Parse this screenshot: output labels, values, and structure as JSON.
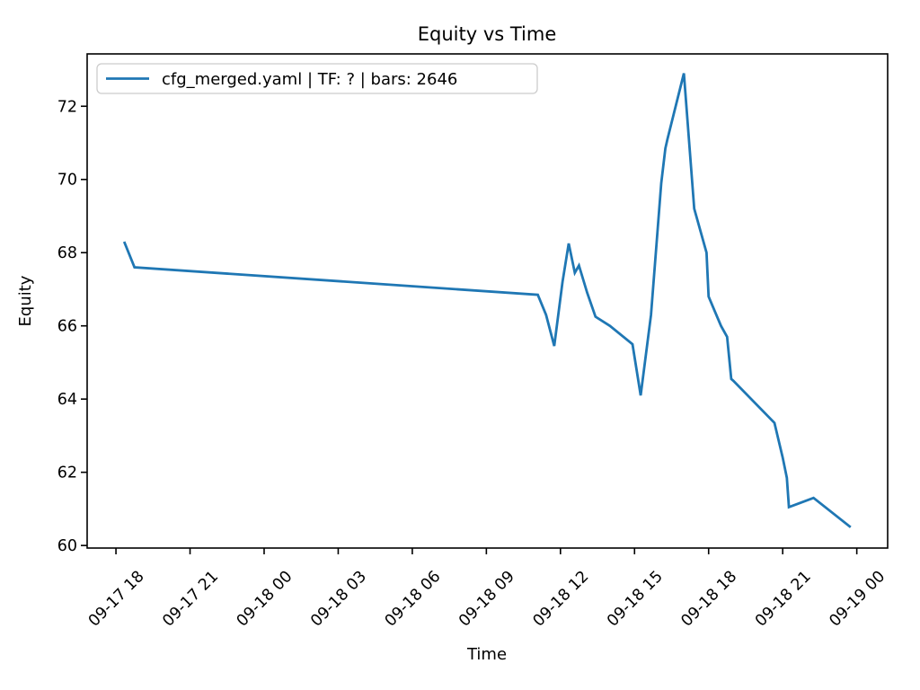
{
  "figure": {
    "background": "#ffffff"
  },
  "legend": {
    "label": "cfg_merged.yaml | TF: ? | bars: 2646",
    "position": "upper left",
    "border_color": "#cccccc",
    "background": "rgba(255,255,255,0.8)"
  },
  "chart_data": {
    "type": "line",
    "title": "Equity vs Time",
    "xlabel": "Time",
    "ylabel": "Equity",
    "grid": false,
    "legend_position": "upper left",
    "line_color": "#1f77b4",
    "spine_color": "#000000",
    "x_ticks": [
      "09-17 18",
      "09-17 21",
      "09-18 00",
      "09-18 03",
      "09-18 06",
      "09-18 09",
      "09-18 12",
      "09-18 15",
      "09-18 18",
      "09-18 21",
      "09-19 00"
    ],
    "y_ticks": [
      60,
      62,
      64,
      66,
      68,
      70,
      72
    ],
    "ylim": [
      59.93,
      73.43
    ],
    "xlim": [
      "09-17 16:50",
      "09-19 01:15"
    ],
    "series": [
      {
        "name": "cfg_merged.yaml | TF: ? | bars: 2646",
        "color": "#1f77b4",
        "points": [
          [
            "09-17 18:20",
            68.3
          ],
          [
            "09-17 18:45",
            67.6
          ],
          [
            "09-18 11:05",
            66.85
          ],
          [
            "09-18 11:25",
            66.3
          ],
          [
            "09-18 11:45",
            65.45
          ],
          [
            "09-18 12:05",
            67.2
          ],
          [
            "09-18 12:20",
            68.25
          ],
          [
            "09-18 12:35",
            67.45
          ],
          [
            "09-18 12:45",
            67.65
          ],
          [
            "09-18 13:05",
            66.9
          ],
          [
            "09-18 13:25",
            66.25
          ],
          [
            "09-18 14:00",
            66.0
          ],
          [
            "09-18 14:55",
            65.5
          ],
          [
            "09-18 15:15",
            64.1
          ],
          [
            "09-18 15:40",
            66.3
          ],
          [
            "09-18 16:05",
            69.9
          ],
          [
            "09-18 16:15",
            70.85
          ],
          [
            "09-18 16:20",
            71.1
          ],
          [
            "09-18 17:00",
            72.9
          ],
          [
            "09-18 17:25",
            69.2
          ],
          [
            "09-18 17:55",
            68.0
          ],
          [
            "09-18 18:00",
            66.8
          ],
          [
            "09-18 18:15",
            66.4
          ],
          [
            "09-18 18:30",
            66.0
          ],
          [
            "09-18 18:45",
            65.7
          ],
          [
            "09-18 18:55",
            64.55
          ],
          [
            "09-18 19:00",
            64.5
          ],
          [
            "09-18 20:40",
            63.35
          ],
          [
            "09-18 21:00",
            62.4
          ],
          [
            "09-18 21:10",
            61.85
          ],
          [
            "09-18 21:15",
            61.05
          ],
          [
            "09-18 22:15",
            61.3
          ],
          [
            "09-18 23:45",
            60.5
          ]
        ]
      }
    ]
  }
}
